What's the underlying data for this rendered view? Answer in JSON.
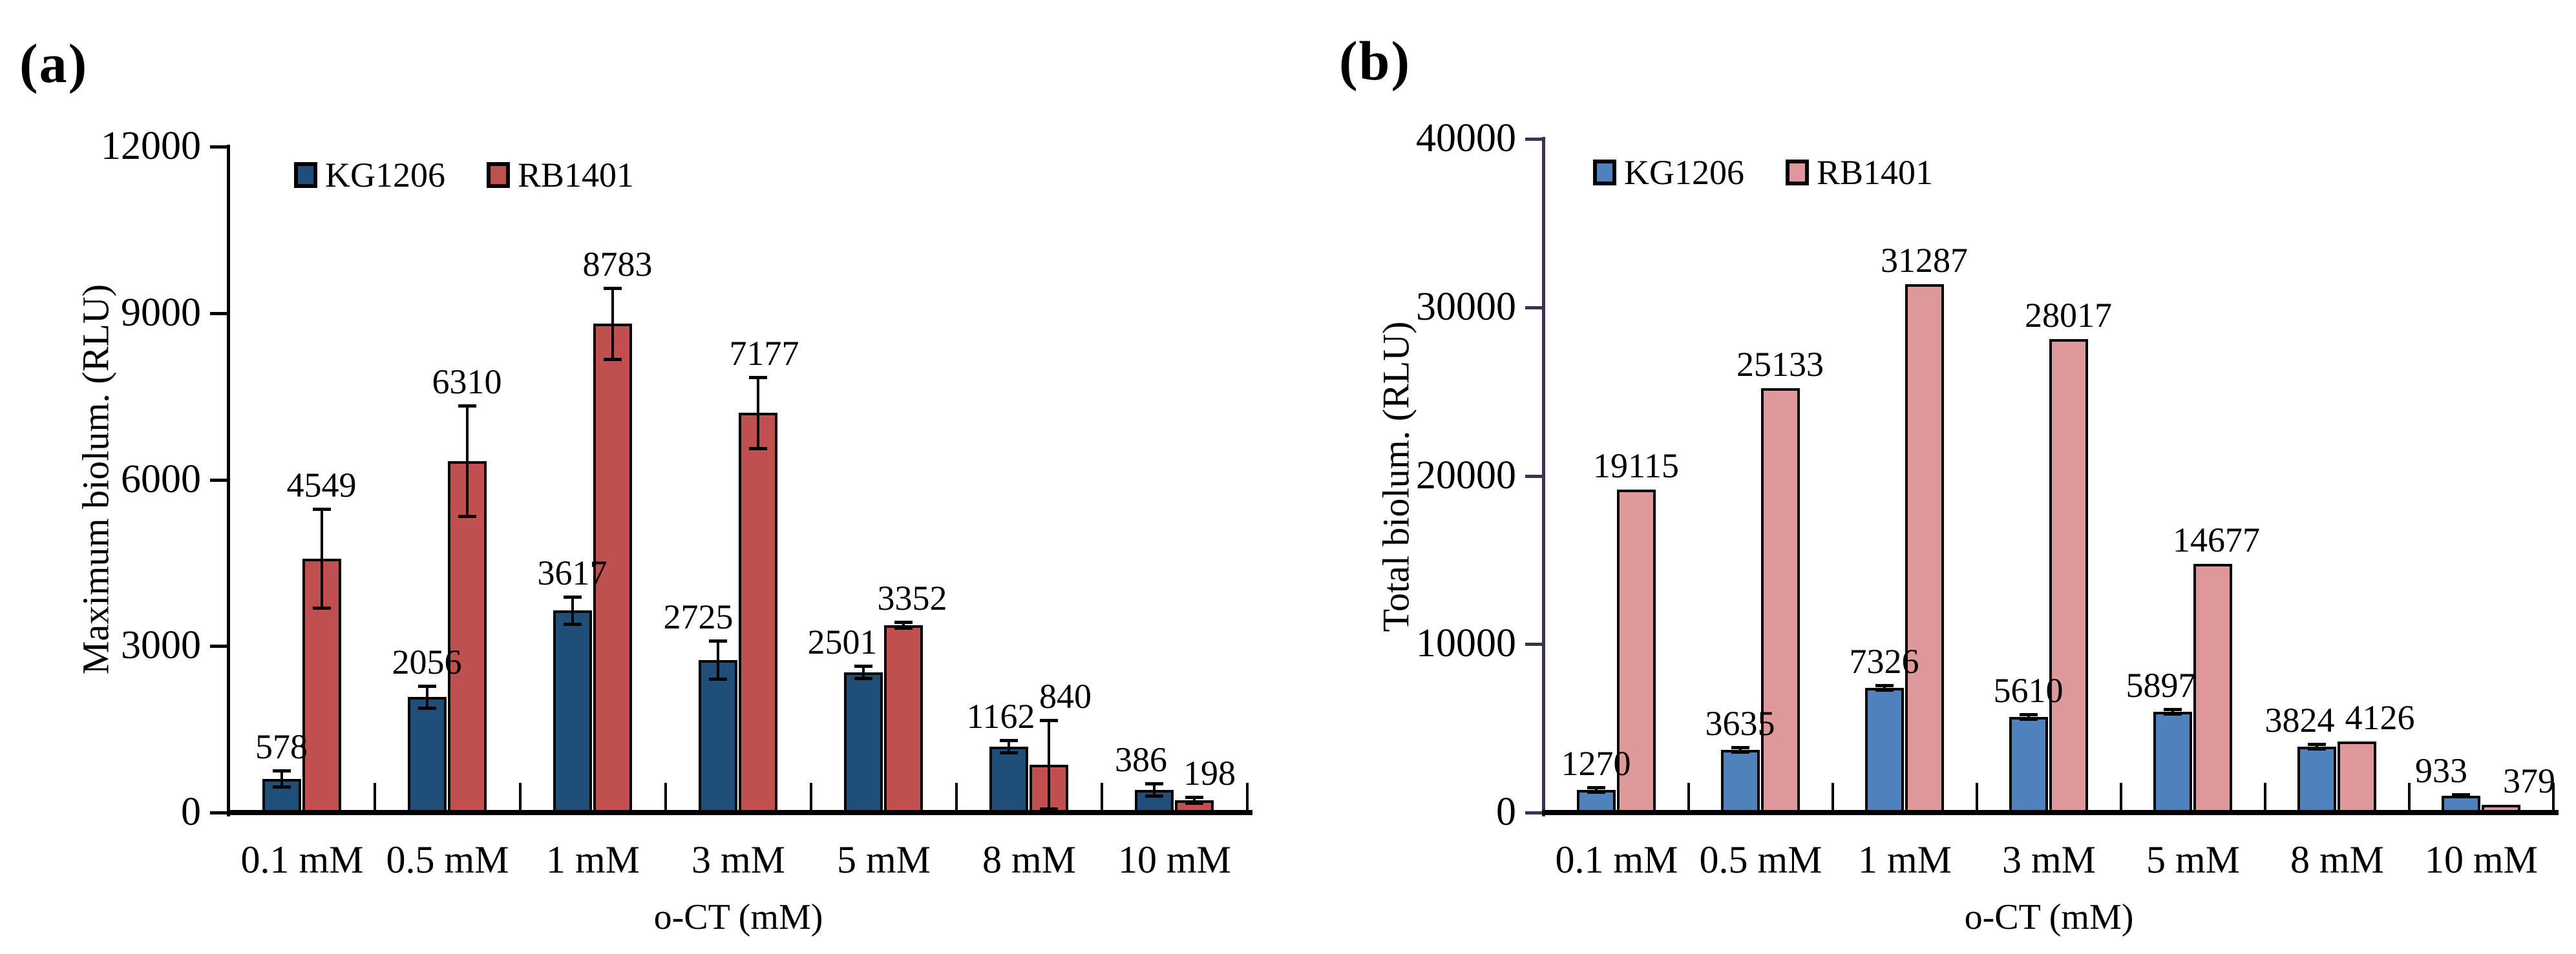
{
  "figure_background": "#ffffff",
  "chart_data": [
    {
      "panel_label": "(a)",
      "type": "bar",
      "ylabel": "Maximum biolum. (RLU)",
      "xlabel": "o-CT (mM)",
      "ylim": [
        0,
        12000
      ],
      "yticks": [
        0,
        3000,
        6000,
        9000,
        12000
      ],
      "categories": [
        "0.1 mM",
        "0.5 mM",
        "1 mM",
        "3 mM",
        "5 mM",
        "8 mM",
        "10 mM"
      ],
      "grid": "off",
      "legend_position": "top-left-inside",
      "axis_color": "#000000",
      "error_bars": "visible",
      "series": [
        {
          "name": "KG1206",
          "color": "#1F4E79",
          "values": [
            578,
            2056,
            3617,
            2725,
            2501,
            1162,
            386
          ],
          "errors": [
            150,
            200,
            250,
            350,
            120,
            120,
            120
          ]
        },
        {
          "name": "RB1401",
          "color": "#C0504D",
          "values": [
            4549,
            6310,
            8783,
            7177,
            3352,
            840,
            198
          ],
          "errors": [
            900,
            1000,
            650,
            650,
            60,
            800,
            60
          ]
        }
      ]
    },
    {
      "panel_label": "(b)",
      "type": "bar",
      "ylabel": "Total biolum. (RLU)",
      "xlabel": "o-CT (mM)",
      "ylim": [
        0,
        40000
      ],
      "yticks": [
        0,
        10000,
        20000,
        30000,
        40000
      ],
      "categories": [
        "0.1 mM",
        "0.5 mM",
        "1 mM",
        "3 mM",
        "5 mM",
        "8 mM",
        "10 mM"
      ],
      "grid": "off",
      "legend_position": "top-left-inside",
      "axis_color": "#3F3151",
      "error_bars": "small",
      "series": [
        {
          "name": "KG1206",
          "color": "#4F81BD",
          "values": [
            1270,
            3635,
            7326,
            5610,
            5897,
            3824,
            933
          ],
          "errors": [
            150,
            150,
            150,
            150,
            150,
            150,
            80
          ]
        },
        {
          "name": "RB1401",
          "color": "#E0999B",
          "values": [
            19115,
            25133,
            31287,
            28017,
            14677,
            4126,
            379
          ],
          "errors": [
            0,
            0,
            0,
            0,
            0,
            0,
            0
          ]
        }
      ]
    }
  ]
}
